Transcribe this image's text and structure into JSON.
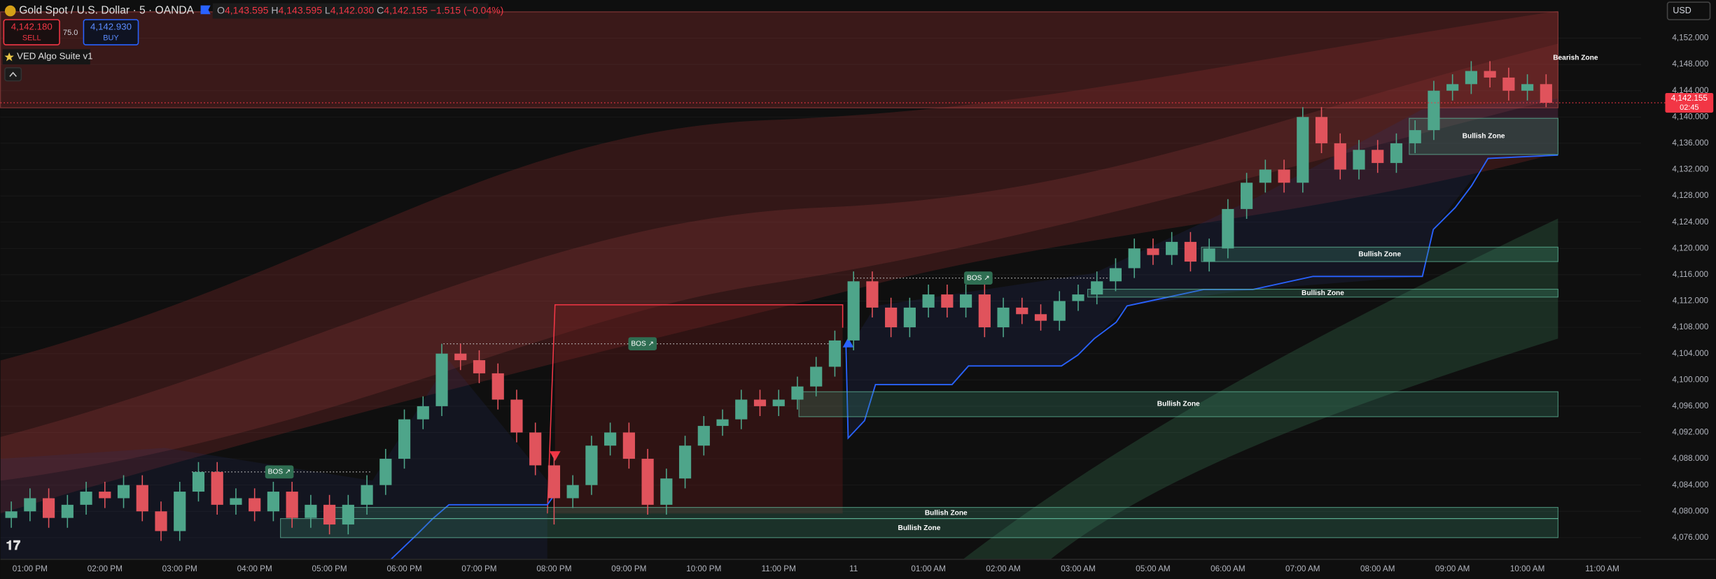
{
  "header": {
    "symbol": "Gold Spot / U.S. Dollar · 5 · OANDA",
    "ohlc": [
      {
        "key": "O",
        "value": "4,143.595"
      },
      {
        "key": "H",
        "value": "4,143.595"
      },
      {
        "key": "L",
        "value": "4,142.030"
      },
      {
        "key": "C",
        "value": "4,142.155"
      }
    ],
    "change": "−1.515 (−0.04%)",
    "sell": {
      "price": "4,142.180",
      "label": "SELL"
    },
    "spread": "75.0",
    "buy": {
      "price": "4,142.930",
      "label": "BUY"
    },
    "indicator": "VED Algo Suite v1",
    "currency": "USD"
  },
  "chart_data": {
    "type": "candlestick",
    "categories": [
      "01:00 PM",
      "02:00 PM",
      "03:00 PM",
      "04:00 PM",
      "05:00 PM",
      "06:00 PM",
      "07:00 PM",
      "08:00 PM",
      "09:00 PM",
      "10:00 PM",
      "11:00 PM",
      "11",
      "01:00 AM",
      "02:00 AM",
      "03:00 AM",
      "05:00 AM",
      "06:00 AM",
      "07:00 AM",
      "08:00 AM",
      "09:00 AM",
      "10:00 AM",
      "11:00 AM"
    ],
    "ylim": [
      4072.7,
      4157.8
    ],
    "yticks": [
      {
        "value": 4076,
        "label": "4,076.000"
      },
      {
        "value": 4080,
        "label": "4,080.000"
      },
      {
        "value": 4084,
        "label": "4,084.000"
      },
      {
        "value": 4088,
        "label": "4,088.000"
      },
      {
        "value": 4092,
        "label": "4,092.000"
      },
      {
        "value": 4096,
        "label": "4,096.000"
      },
      {
        "value": 4100,
        "label": "4,100.000"
      },
      {
        "value": 4104,
        "label": "4,104.000"
      },
      {
        "value": 4108,
        "label": "4,108.000"
      },
      {
        "value": 4112,
        "label": "4,112.000"
      },
      {
        "value": 4116,
        "label": "4,116.000"
      },
      {
        "value": 4120,
        "label": "4,120.000"
      },
      {
        "value": 4124,
        "label": "4,124.000"
      },
      {
        "value": 4128,
        "label": "4,128.000"
      },
      {
        "value": 4132,
        "label": "4,132.000"
      },
      {
        "value": 4136,
        "label": "4,136.000"
      },
      {
        "value": 4140,
        "label": "4,140.000"
      },
      {
        "value": 4144,
        "label": "4,144.000"
      },
      {
        "value": 4148,
        "label": "4,148.000"
      },
      {
        "value": 4152,
        "label": "4,152.000"
      }
    ],
    "up_color": "#4ea58a",
    "down_color": "#e0535c",
    "open": [
      4079,
      4080,
      4082,
      4079,
      4081,
      4083,
      4082,
      4084,
      4080,
      4077,
      4083,
      4086,
      4081,
      4082,
      4080,
      4083,
      4079,
      4081,
      4078,
      4081,
      4084,
      4088,
      4094,
      4096,
      4104,
      4103,
      4101,
      4097,
      4092,
      4087,
      4082,
      4084,
      4090,
      4092,
      4088,
      4081,
      4085,
      4090,
      4093,
      4094,
      4097,
      4096,
      4097,
      4099,
      4102,
      4106,
      4115,
      4111,
      4108,
      4111,
      4113,
      4111,
      4113,
      4108,
      4111,
      4110,
      4109,
      4112,
      4113,
      4115,
      4117,
      4120,
      4119,
      4121,
      4118,
      4120,
      4126,
      4130,
      4132,
      4130,
      4140,
      4136,
      4132,
      4135,
      4133,
      4136,
      4138,
      4144,
      4145,
      4147,
      4146,
      4144,
      4145
    ],
    "high": [
      4081.5,
      4083.5,
      4083.5,
      4082.5,
      4084.5,
      4084.5,
      4085.5,
      4085.5,
      4081.5,
      4084.5,
      4087.5,
      4087.5,
      4083.5,
      4083.5,
      4084.5,
      4084.5,
      4082.5,
      4082.5,
      4082.5,
      4085.5,
      4089.5,
      4095.5,
      4097.5,
      4105.5,
      4105.5,
      4104.5,
      4102.5,
      4098.5,
      4093.5,
      4088.5,
      4085.5,
      4091.5,
      4093.5,
      4093.5,
      4089.5,
      4086.5,
      4091.5,
      4094.5,
      4095.5,
      4098.5,
      4098.5,
      4098.5,
      4100.5,
      4103.5,
      4107.5,
      4116.5,
      4116.5,
      4112.5,
      4112.5,
      4114.5,
      4114.5,
      4114.5,
      4114.5,
      4112.5,
      4112.5,
      4111.5,
      4113.5,
      4114.5,
      4116.5,
      4118.5,
      4121.5,
      4121.5,
      4122.5,
      4122.5,
      4121.5,
      4127.5,
      4131.5,
      4133.5,
      4133.5,
      4141.5,
      4141.5,
      4137.5,
      4136.5,
      4136.5,
      4137.5,
      4139.5,
      4145.5,
      4146.5,
      4148.5,
      4148.5,
      4147.5,
      4146.5,
      4146.5
    ],
    "low": [
      4077.5,
      4078.5,
      4077.5,
      4077.5,
      4079.5,
      4080.5,
      4080.5,
      4078.5,
      4075.5,
      4075.5,
      4081.5,
      4079.5,
      4079.5,
      4078.5,
      4078.5,
      4077.5,
      4077.5,
      4076.5,
      4076.5,
      4079.5,
      4082.5,
      4086.5,
      4092.5,
      4094.5,
      4101.5,
      4099.5,
      4095.5,
      4090.5,
      4085.5,
      4078,
      4080.5,
      4082.5,
      4088.5,
      4086.5,
      4079.5,
      4079.5,
      4083.5,
      4088.5,
      4091.5,
      4092.5,
      4094.5,
      4094.5,
      4095.5,
      4097.5,
      4100.5,
      4104.5,
      4109.5,
      4106.5,
      4106.5,
      4109.5,
      4109.5,
      4109.5,
      4106.5,
      4106.5,
      4108.5,
      4107.5,
      4107.5,
      4110.5,
      4111.5,
      4113.5,
      4115.5,
      4117.5,
      4117.5,
      4116.5,
      4116.5,
      4118.5,
      4124.5,
      4128.5,
      4128.5,
      4128.5,
      4134.5,
      4130.5,
      4130.5,
      4131.5,
      4131.5,
      4134.5,
      4136.5,
      4142.5,
      4143.5,
      4144.5,
      4142.5,
      4142.5,
      4141.5
    ],
    "close": [
      4080,
      4082,
      4079,
      4081,
      4083,
      4082,
      4084,
      4080,
      4077,
      4083,
      4086,
      4081,
      4082,
      4080,
      4083,
      4079,
      4081,
      4078,
      4081,
      4084,
      4088,
      4094,
      4096,
      4104,
      4103,
      4101,
      4097,
      4092,
      4087,
      4082,
      4084,
      4090,
      4092,
      4088,
      4081,
      4085,
      4090,
      4093,
      4094,
      4097,
      4096,
      4097,
      4099,
      4102,
      4106,
      4115,
      4111,
      4108,
      4111,
      4113,
      4111,
      4113,
      4108,
      4111,
      4110,
      4109,
      4112,
      4113,
      4115,
      4117,
      4120,
      4119,
      4121,
      4118,
      4120,
      4126,
      4130,
      4132,
      4130,
      4140,
      4136,
      4132,
      4135,
      4133,
      4136,
      4138,
      4144,
      4145,
      4147,
      4146,
      4144,
      4145,
      4142.155
    ],
    "last_price": {
      "value": 4142.155,
      "label": "4,142.155"
    },
    "countdown": "02:45",
    "zones": [
      {
        "label": "Bearish Zone",
        "low": 4141.4,
        "high": 4156
      },
      {
        "label": "Bullish Zone",
        "low": 4134.3,
        "high": 4139.8
      },
      {
        "label": "Bullish Zone",
        "low": 4118,
        "high": 4120.2
      },
      {
        "label": "Bullish Zone",
        "low": 4112.6,
        "high": 4113.8
      },
      {
        "label": "Bullish Zone",
        "low": 4094.4,
        "high": 4098.2
      },
      {
        "label": "Bullish Zone",
        "low": 4078.9,
        "high": 4080.6
      },
      {
        "label": "Bullish Zone",
        "low": 4076,
        "high": 4078.9
      }
    ],
    "bos": [
      {
        "label": "BOS ↗",
        "level": 4086
      },
      {
        "label": "BOS ↗",
        "level": 4105.5
      },
      {
        "label": "BOS ↗",
        "level": 4115.5
      }
    ]
  }
}
